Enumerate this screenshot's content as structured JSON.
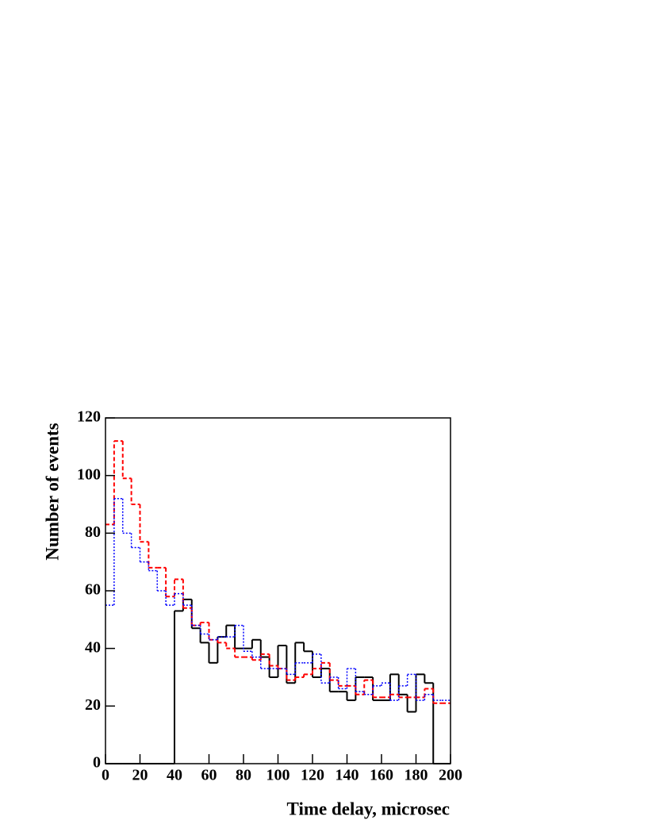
{
  "chart_data": {
    "type": "histogram",
    "x_label": "Time delay, microsec",
    "y_label": "Number of events",
    "bins": [
      0,
      5,
      10,
      15,
      20,
      25,
      30,
      35,
      40,
      45,
      50,
      55,
      60,
      65,
      70,
      75,
      80,
      85,
      90,
      95,
      100,
      105,
      110,
      115,
      120,
      125,
      130,
      135,
      140,
      145,
      150,
      155,
      160,
      165,
      170,
      175,
      180,
      185,
      190,
      195,
      200
    ],
    "series": [
      {
        "color": "#000000",
        "dash": "none",
        "width": 2,
        "values": [
          0,
          0,
          0,
          0,
          0,
          0,
          0,
          0,
          53,
          57,
          47,
          42,
          35,
          44,
          48,
          40,
          40,
          43,
          37,
          30,
          41,
          28,
          42,
          39,
          30,
          33,
          25,
          25,
          22,
          30,
          30,
          22,
          22,
          31,
          24,
          18,
          31,
          28,
          0,
          0
        ]
      },
      {
        "color": "#ff0000",
        "dash": "5,3",
        "width": 2,
        "values": [
          83,
          112,
          99,
          90,
          77,
          68,
          68,
          58,
          64,
          54,
          48,
          49,
          43,
          42,
          40,
          37,
          37,
          36,
          38,
          34,
          33,
          29,
          30,
          31,
          33,
          35,
          29,
          27,
          27,
          24,
          29,
          23,
          23,
          24,
          23,
          23,
          23,
          26,
          21,
          21
        ]
      },
      {
        "color": "#0000ff",
        "dash": "2,2",
        "width": 1.5,
        "values": [
          55,
          92,
          80,
          75,
          70,
          67,
          60,
          55,
          59,
          55,
          48,
          45,
          43,
          44,
          44,
          48,
          39,
          37,
          33,
          33,
          33,
          31,
          35,
          35,
          38,
          28,
          30,
          26,
          33,
          25,
          24,
          27,
          28,
          22,
          27,
          31,
          22,
          24,
          22,
          22
        ]
      }
    ],
    "xlim": [
      0,
      200
    ],
    "xticks": [
      0,
      20,
      40,
      60,
      80,
      100,
      120,
      140,
      160,
      180,
      200
    ],
    "ylim": [
      0,
      120
    ],
    "yticks": [
      0,
      20,
      40,
      60,
      80,
      100,
      120
    ]
  }
}
